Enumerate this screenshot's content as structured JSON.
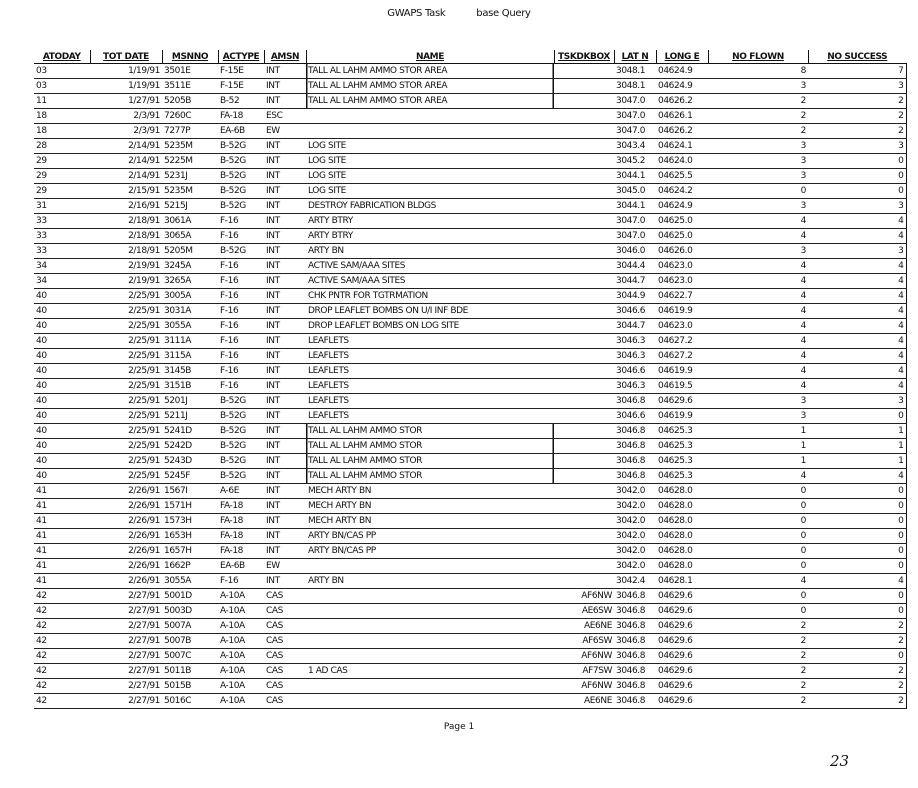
{
  "header": {
    "title_left": "GWAPS Task",
    "title_right": "base Query"
  },
  "table": {
    "columns": [
      "ATODAY",
      "TOT DATE",
      "MSNNO",
      "ACTYPE",
      "AMSN",
      "NAME",
      "TSKDKBOX",
      "LAT N",
      "LONG E",
      "NO FLOWN",
      "NO SUCCESS"
    ],
    "rows": [
      [
        "03",
        "1/19/91",
        "3501E",
        "F-15E",
        "INT",
        "TALL AL LAHM AMMO STOR AREA",
        "",
        "3048.1",
        "04624.9",
        "8",
        "7"
      ],
      [
        "03",
        "1/19/91",
        "3511E",
        "F-15E",
        "INT",
        "TALL AL LAHM AMMO STOR AREA",
        "",
        "3048.1",
        "04624.9",
        "3",
        "3"
      ],
      [
        "11",
        "1/27/91",
        "5205B",
        "B-52",
        "INT",
        "TALL AL LAHM AMMO STOR AREA",
        "",
        "3047.0",
        "04626.2",
        "2",
        "2"
      ],
      [
        "18",
        "2/3/91",
        "7260C",
        "FA-18",
        "ESC",
        "",
        "",
        "3047.0",
        "04626.1",
        "2",
        "2"
      ],
      [
        "18",
        "2/3/91",
        "7277P",
        "EA-6B",
        "EW",
        "",
        "",
        "3047.0",
        "04626.2",
        "2",
        "2"
      ],
      [
        "28",
        "2/14/91",
        "5235M",
        "B-52G",
        "INT",
        "LOG SITE",
        "",
        "3043.4",
        "04624.1",
        "3",
        "3"
      ],
      [
        "29",
        "2/14/91",
        "5225M",
        "B-52G",
        "INT",
        "LOG SITE",
        "",
        "3045.2",
        "04624.0",
        "3",
        "0"
      ],
      [
        "29",
        "2/14/91",
        "5231J",
        "B-52G",
        "INT",
        "LOG SITE",
        "",
        "3044.1",
        "04625.5",
        "3",
        "0"
      ],
      [
        "29",
        "2/15/91",
        "5235M",
        "B-52G",
        "INT",
        "LOG SITE",
        "",
        "3045.0",
        "04624.2",
        "0",
        "0"
      ],
      [
        "31",
        "2/16/91",
        "5215J",
        "B-52G",
        "INT",
        "DESTROY FABRICATION BLDGS",
        "",
        "3044.1",
        "04624.9",
        "3",
        "3"
      ],
      [
        "33",
        "2/18/91",
        "3061A",
        "F-16",
        "INT",
        "ARTY BTRY",
        "",
        "3047.0",
        "04625.0",
        "4",
        "4"
      ],
      [
        "33",
        "2/18/91",
        "3065A",
        "F-16",
        "INT",
        "ARTY BTRY",
        "",
        "3047.0",
        "04625.0",
        "4",
        "4"
      ],
      [
        "33",
        "2/18/91",
        "5205M",
        "B-52G",
        "INT",
        "ARTY BN",
        "",
        "3046.0",
        "04626.0",
        "3",
        "3"
      ],
      [
        "34",
        "2/19/91",
        "3245A",
        "F-16",
        "INT",
        "ACTIVE SAM/AAA SITES",
        "",
        "3044.4",
        "04623.0",
        "4",
        "4"
      ],
      [
        "34",
        "2/19/91",
        "3265A",
        "F-16",
        "INT",
        "ACTIVE SAM/AAA SITES",
        "",
        "3044.7",
        "04623.0",
        "4",
        "4"
      ],
      [
        "40",
        "2/25/91",
        "3005A",
        "F-16",
        "INT",
        "CHK PNTR FOR TGTRMATION",
        "",
        "3044.9",
        "04622.7",
        "4",
        "4"
      ],
      [
        "40",
        "2/25/91",
        "3031A",
        "F-16",
        "INT",
        "DROP LEAFLET BOMBS ON U/I INF BDE",
        "",
        "3046.6",
        "04619.9",
        "4",
        "4"
      ],
      [
        "40",
        "2/25/91",
        "3055A",
        "F-16",
        "INT",
        "DROP LEAFLET BOMBS ON LOG SITE",
        "",
        "3044.7",
        "04623.0",
        "4",
        "4"
      ],
      [
        "40",
        "2/25/91",
        "3111A",
        "F-16",
        "INT",
        "LEAFLETS",
        "",
        "3046.3",
        "04627.2",
        "4",
        "4"
      ],
      [
        "40",
        "2/25/91",
        "3115A",
        "F-16",
        "INT",
        "LEAFLETS",
        "",
        "3046.3",
        "04627.2",
        "4",
        "4"
      ],
      [
        "40",
        "2/25/91",
        "3145B",
        "F-16",
        "INT",
        "LEAFLETS",
        "",
        "3046.6",
        "04619.9",
        "4",
        "4"
      ],
      [
        "40",
        "2/25/91",
        "3151B",
        "F-16",
        "INT",
        "LEAFLETS",
        "",
        "3046.3",
        "04619.5",
        "4",
        "4"
      ],
      [
        "40",
        "2/25/91",
        "5201J",
        "B-52G",
        "INT",
        "LEAFLETS",
        "",
        "3046.8",
        "04629.6",
        "3",
        "3"
      ],
      [
        "40",
        "2/25/91",
        "5211J",
        "B-52G",
        "INT",
        "LEAFLETS",
        "",
        "3046.6",
        "04619.9",
        "3",
        "0"
      ],
      [
        "40",
        "2/25/91",
        "5241D",
        "B-52G",
        "INT",
        "TALL AL LAHM AMMO STOR",
        "",
        "3046.8",
        "04625.3",
        "1",
        "1"
      ],
      [
        "40",
        "2/25/91",
        "5242D",
        "B-52G",
        "INT",
        "TALL AL LAHM AMMO STOR",
        "",
        "3046.8",
        "04625.3",
        "1",
        "1"
      ],
      [
        "40",
        "2/25/91",
        "5243D",
        "B-52G",
        "INT",
        "TALL AL LAHM AMMO STOR",
        "",
        "3046.8",
        "04625.3",
        "1",
        "1"
      ],
      [
        "40",
        "2/25/91",
        "5245F",
        "B-52G",
        "INT",
        "TALL AL LAHM AMMO STOR",
        "",
        "3046.8",
        "04625.3",
        "4",
        "4"
      ],
      [
        "41",
        "2/26/91",
        "1567I",
        "A-6E",
        "INT",
        "MECH ARTY BN",
        "",
        "3042.0",
        "04628.0",
        "0",
        "0"
      ],
      [
        "41",
        "2/26/91",
        "1571H",
        "FA-18",
        "INT",
        "MECH ARTY BN",
        "",
        "3042.0",
        "04628.0",
        "0",
        "0"
      ],
      [
        "41",
        "2/26/91",
        "1573H",
        "FA-18",
        "INT",
        "MECH ARTY BN",
        "",
        "3042.0",
        "04628.0",
        "0",
        "0"
      ],
      [
        "41",
        "2/26/91",
        "1653H",
        "FA-18",
        "INT",
        "ARTY BN/CAS PP",
        "",
        "3042.0",
        "04628.0",
        "0",
        "0"
      ],
      [
        "41",
        "2/26/91",
        "1657H",
        "FA-18",
        "INT",
        "ARTY BN/CAS PP",
        "",
        "3042.0",
        "04628.0",
        "0",
        "0"
      ],
      [
        "41",
        "2/26/91",
        "1662P",
        "EA-6B",
        "EW",
        "",
        "",
        "3042.0",
        "04628.0",
        "0",
        "0"
      ],
      [
        "41",
        "2/26/91",
        "3055A",
        "F-16",
        "INT",
        "ARTY BN",
        "",
        "3042.4",
        "04628.1",
        "4",
        "4"
      ],
      [
        "42",
        "2/27/91",
        "5001D",
        "A-10A",
        "CAS",
        "",
        "AF6NW",
        "3046.8",
        "04629.6",
        "0",
        "0"
      ],
      [
        "42",
        "2/27/91",
        "5003D",
        "A-10A",
        "CAS",
        "",
        "AE6SW",
        "3046.8",
        "04629.6",
        "0",
        "0"
      ],
      [
        "42",
        "2/27/91",
        "5007A",
        "A-10A",
        "CAS",
        "",
        "AE6NE",
        "3046.8",
        "04629.6",
        "2",
        "2"
      ],
      [
        "42",
        "2/27/91",
        "5007B",
        "A-10A",
        "CAS",
        "",
        "AF6SW",
        "3046.8",
        "04629.6",
        "2",
        "2"
      ],
      [
        "42",
        "2/27/91",
        "5007C",
        "A-10A",
        "CAS",
        "",
        "AF6NW",
        "3046.8",
        "04629.6",
        "2",
        "0"
      ],
      [
        "42",
        "2/27/91",
        "5011B",
        "A-10A",
        "CAS",
        "1 AD CAS",
        "AF7SW",
        "3046.8",
        "04629.6",
        "2",
        "2"
      ],
      [
        "42",
        "2/27/91",
        "5015B",
        "A-10A",
        "CAS",
        "",
        "AF6NW",
        "3046.8",
        "04629.6",
        "2",
        "2"
      ],
      [
        "42",
        "2/27/91",
        "5016C",
        "A-10A",
        "CAS",
        "",
        "AE6NE",
        "3046.8",
        "04629.6",
        "2",
        "2"
      ]
    ]
  },
  "footer": {
    "page": "Page 1",
    "handwritten_number": "23"
  }
}
